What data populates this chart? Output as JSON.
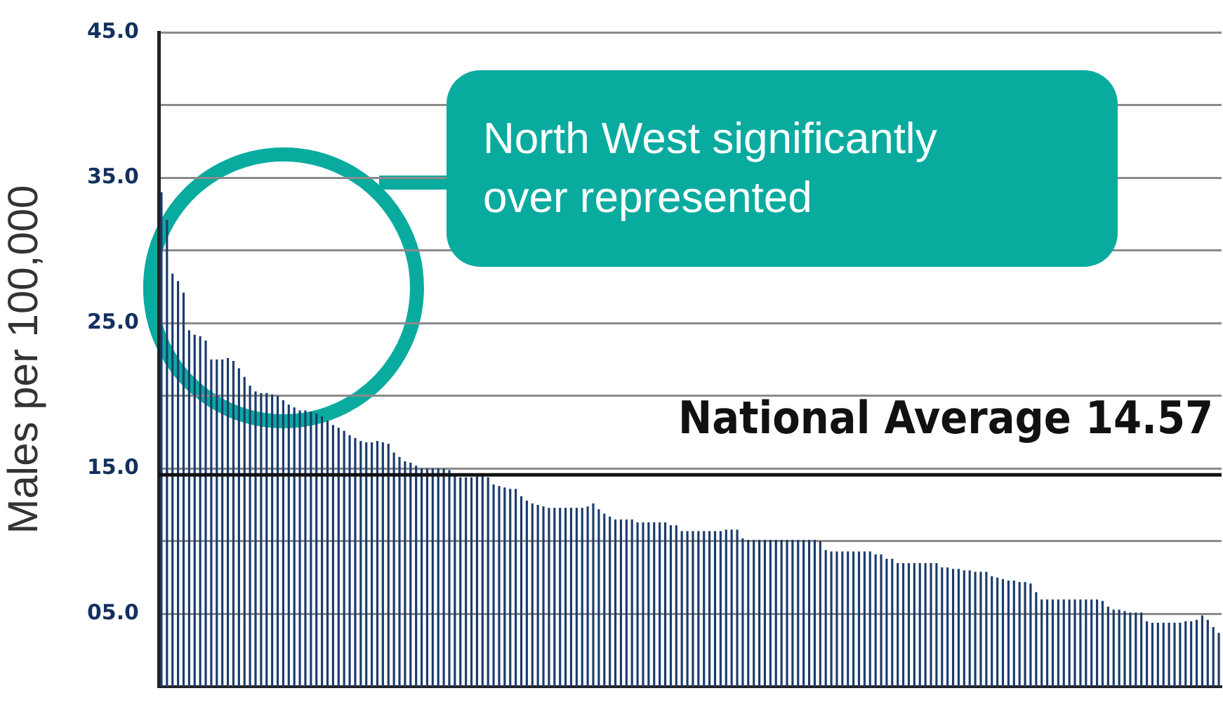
{
  "chart_data": {
    "type": "bar",
    "ylabel": "Males per 100,000",
    "categories": [
      null,
      null,
      null,
      null,
      null,
      null,
      null,
      null,
      null,
      null,
      null,
      null,
      null,
      null,
      null,
      null,
      null,
      null,
      null,
      null,
      null,
      null,
      null,
      null,
      null,
      null,
      null,
      null,
      null,
      null,
      null,
      null,
      null,
      null,
      null,
      null,
      null,
      null,
      null,
      null,
      null,
      null,
      null,
      null,
      null,
      null,
      null,
      null,
      null,
      null,
      null,
      null,
      null,
      null,
      null,
      null,
      null,
      null,
      null,
      null,
      null,
      null,
      null,
      null,
      null,
      null,
      null,
      null,
      null,
      null,
      null,
      null,
      null,
      null,
      null,
      null,
      null,
      null,
      null,
      null,
      null,
      null,
      null,
      null,
      null,
      null,
      null,
      null,
      null,
      null,
      null,
      null,
      null,
      null,
      null,
      null,
      null,
      null,
      null,
      null,
      null,
      null,
      null,
      null,
      null,
      null,
      null,
      null,
      null,
      null,
      null,
      null,
      null,
      null,
      null,
      null,
      null,
      null,
      null,
      null,
      null,
      null,
      null,
      null,
      null,
      null,
      null,
      null,
      null,
      null,
      null,
      null,
      null,
      null,
      null,
      null,
      null,
      null,
      null,
      null,
      null,
      null,
      null,
      null,
      null,
      null,
      null,
      null,
      null,
      null,
      null,
      null,
      null,
      null,
      null,
      null,
      null,
      null,
      null,
      null,
      null,
      null,
      null,
      null,
      null,
      null,
      null,
      null,
      null,
      null,
      null,
      null,
      null,
      null,
      null,
      null,
      null,
      null,
      null,
      null,
      null,
      null,
      null,
      null,
      null,
      null,
      null,
      null,
      null,
      null,
      null,
      null
    ],
    "values": [
      34.0,
      32.1,
      28.4,
      27.9,
      27.1,
      24.5,
      24.2,
      24.1,
      23.8,
      22.5,
      22.5,
      22.5,
      22.6,
      22.4,
      21.9,
      21.3,
      20.7,
      20.3,
      20.2,
      20.2,
      20.1,
      20.0,
      19.7,
      19.4,
      19.2,
      19.0,
      19.0,
      18.9,
      18.8,
      18.6,
      18.3,
      18.0,
      17.8,
      17.6,
      17.3,
      17.1,
      16.9,
      16.8,
      16.8,
      16.9,
      16.8,
      16.7,
      16.1,
      15.8,
      15.5,
      15.4,
      15.2,
      15.0,
      15.0,
      15.0,
      15.0,
      15.0,
      14.9,
      14.5,
      14.4,
      14.4,
      14.4,
      14.5,
      14.6,
      14.4,
      13.9,
      13.8,
      13.7,
      13.6,
      13.6,
      13.1,
      12.8,
      12.6,
      12.5,
      12.4,
      12.3,
      12.3,
      12.3,
      12.3,
      12.3,
      12.3,
      12.3,
      12.4,
      12.6,
      12.2,
      11.9,
      11.7,
      11.5,
      11.5,
      11.5,
      11.5,
      11.3,
      11.3,
      11.3,
      11.3,
      11.3,
      11.3,
      11.1,
      11.1,
      10.7,
      10.7,
      10.7,
      10.7,
      10.7,
      10.7,
      10.7,
      10.7,
      10.8,
      10.8,
      10.8,
      10.2,
      10.1,
      10.1,
      10.1,
      10.1,
      10.1,
      10.1,
      10.1,
      10.1,
      10.1,
      10.1,
      10.1,
      10.1,
      10.1,
      10.0,
      9.4,
      9.3,
      9.3,
      9.3,
      9.3,
      9.3,
      9.3,
      9.3,
      9.3,
      9.1,
      9.1,
      8.8,
      8.8,
      8.5,
      8.5,
      8.5,
      8.5,
      8.5,
      8.5,
      8.5,
      8.5,
      8.2,
      8.2,
      8.1,
      8.1,
      8.0,
      8.0,
      7.9,
      7.9,
      7.9,
      7.6,
      7.5,
      7.4,
      7.3,
      7.3,
      7.2,
      7.2,
      7.1,
      6.5,
      6.0,
      6.0,
      6.0,
      6.0,
      6.0,
      6.0,
      6.0,
      6.0,
      6.0,
      6.0,
      6.0,
      5.9,
      5.5,
      5.3,
      5.3,
      5.2,
      5.1,
      5.1,
      5.1,
      4.5,
      4.4,
      4.4,
      4.4,
      4.4,
      4.4,
      4.4,
      4.5,
      4.5,
      4.6,
      4.9,
      4.6,
      4.1,
      3.7
    ],
    "color": "#1b3b6c",
    "ylim": [
      0,
      45
    ],
    "yticks": [
      {
        "value": 5,
        "label": "05.0"
      },
      {
        "value": 10,
        "label": null
      },
      {
        "value": 15,
        "label": "15.0"
      },
      {
        "value": 20,
        "label": null
      },
      {
        "value": 25,
        "label": "25.0"
      },
      {
        "value": 30,
        "label": null
      },
      {
        "value": 35,
        "label": "35.0"
      },
      {
        "value": 40,
        "label": null
      },
      {
        "value": 45,
        "label": "45.0"
      }
    ],
    "grid": "y",
    "tick_labels": "y",
    "ref_lines": [
      {
        "axis": "y",
        "value": 14.57,
        "label": "National Average 14.57",
        "color": "#111111"
      }
    ],
    "annotations": [
      "North West significantly over represented"
    ]
  }
}
